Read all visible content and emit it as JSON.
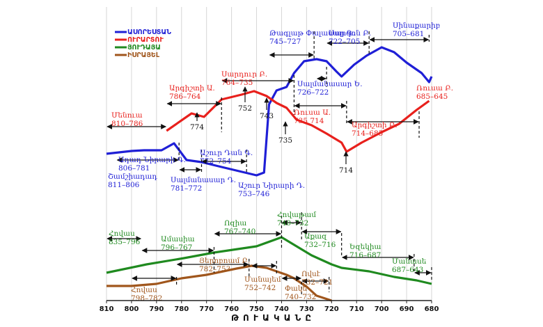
{
  "chart_data": {
    "type": "line",
    "xlabel": "Թ Ո Ւ Ա Կ Ա Ն Ը",
    "x_ticks": [
      810,
      800,
      790,
      780,
      770,
      760,
      750,
      740,
      730,
      720,
      710,
      700,
      690,
      680
    ],
    "xlim": [
      810,
      680
    ],
    "legend": [
      {
        "name": "ԱՍՈՐԵՍՏԱՆ",
        "color": "#1f1fd6"
      },
      {
        "name": "ՈՒՐԱՐՏՈՒ",
        "color": "#e8201c"
      },
      {
        "name": "ՅՈՒԴԱՅԱ",
        "color": "#1f8a1f"
      },
      {
        "name": "ԻՍՐԱՅԵԼ",
        "color": "#a0561c"
      }
    ],
    "series": [
      {
        "name": "ԱՍՈՐԵՍՏԱՆ",
        "color": "#1f1fd6",
        "points": [
          [
            810,
            221
          ],
          [
            800,
            217
          ],
          [
            795,
            216
          ],
          [
            788,
            216
          ],
          [
            783,
            206
          ],
          [
            778,
            230
          ],
          [
            772,
            233
          ],
          [
            764,
            240
          ],
          [
            750,
            252
          ],
          [
            747,
            248
          ],
          [
            745,
            150
          ],
          [
            742,
            130
          ],
          [
            738,
            125
          ],
          [
            735,
            105
          ],
          [
            731,
            88
          ],
          [
            726,
            85
          ],
          [
            722,
            88
          ],
          [
            718,
            103
          ],
          [
            716,
            110
          ],
          [
            711,
            93
          ],
          [
            706,
            80
          ],
          [
            700,
            68
          ],
          [
            695,
            75
          ],
          [
            690,
            90
          ],
          [
            684,
            105
          ],
          [
            681,
            118
          ],
          [
            680,
            110
          ]
        ]
      },
      {
        "name": "ՈՒՐԱՐՏՈՒ",
        "color": "#e8201c",
        "points": [
          [
            786,
            188
          ],
          [
            776,
            163
          ],
          [
            771,
            168
          ],
          [
            764,
            143
          ],
          [
            756,
            136
          ],
          [
            751,
            131
          ],
          [
            746,
            138
          ],
          [
            742,
            148
          ],
          [
            738,
            155
          ],
          [
            734,
            172
          ],
          [
            728,
            180
          ],
          [
            722,
            192
          ],
          [
            716,
            205
          ],
          [
            714,
            218
          ],
          [
            708,
            205
          ],
          [
            700,
            190
          ],
          [
            693,
            178
          ],
          [
            686,
            158
          ],
          [
            681,
            145
          ]
        ]
      },
      {
        "name": "ՅՈՒԴԱՅԱ",
        "color": "#1f8a1f",
        "points": [
          [
            810,
            392
          ],
          [
            794,
            380
          ],
          [
            779,
            371
          ],
          [
            767,
            363
          ],
          [
            750,
            354
          ],
          [
            740,
            341
          ],
          [
            734,
            354
          ],
          [
            728,
            367
          ],
          [
            720,
            380
          ],
          [
            716,
            385
          ],
          [
            705,
            390
          ],
          [
            695,
            398
          ],
          [
            686,
            403
          ],
          [
            680,
            408
          ]
        ]
      },
      {
        "name": "ԻՍՐԱՅԵԼ",
        "color": "#a0561c",
        "points": [
          [
            810,
            411
          ],
          [
            800,
            411
          ],
          [
            790,
            408
          ],
          [
            780,
            400
          ],
          [
            770,
            395
          ],
          [
            758,
            386
          ],
          [
            752,
            382
          ],
          [
            746,
            385
          ],
          [
            742,
            390
          ],
          [
            738,
            395
          ],
          [
            735,
            400
          ],
          [
            730,
            412
          ],
          [
            726,
            425
          ],
          [
            720,
            432
          ]
        ]
      }
    ],
    "annotations": [
      {
        "id": "men-asr",
        "label": "Մենուա",
        "years": "810–786",
        "color": "#e8201c",
        "x_from": 810,
        "x_to": 786
      },
      {
        "id": "argisti1",
        "label": "Արգիշտի Ա.",
        "years": "786–764",
        "color": "#e8201c",
        "x_from": 786,
        "x_to": 764
      },
      {
        "id": "sarduri2",
        "label": "Սարդուր Բ.",
        "years": "764–735",
        "color": "#e8201c",
        "x_from": 764,
        "x_to": 735
      },
      {
        "id": "rusa1",
        "label": "Ռուսա Ա.",
        "years": "735  714",
        "color": "#e8201c",
        "x_from": 735,
        "x_to": 714
      },
      {
        "id": "argisti2",
        "label": "Արգիշտի Բ.",
        "years": "714–685",
        "color": "#e8201c",
        "x_from": 714,
        "x_to": 685
      },
      {
        "id": "rusa2",
        "label": "Ռուսա Բ.",
        "years": "685–645",
        "color": "#e8201c"
      },
      {
        "id": "adad",
        "label": "Ադադ Նիրարի Գ.",
        "years": "806–781",
        "color": "#1f1fd6",
        "x_from": 806,
        "x_to": 781
      },
      {
        "id": "shamshi",
        "label": "Շամշիադադ",
        "years": "811–806",
        "color": "#1f1fd6"
      },
      {
        "id": "salman4",
        "label": "Սալմանասար Դ.",
        "years": "781–772",
        "color": "#1f1fd6",
        "x_from": 781,
        "x_to": 772
      },
      {
        "id": "ashur3",
        "label": "Աշուր Դան Գ.",
        "years": "772–754",
        "color": "#1f1fd6",
        "x_from": 772,
        "x_to": 754
      },
      {
        "id": "ashurnir",
        "label": "Աշուր Նիրարի Դ.",
        "years": "753–746",
        "color": "#1f1fd6"
      },
      {
        "id": "tiglat",
        "label": "Թագլաթ Փալասար Գ.",
        "years": "745–727",
        "color": "#1f1fd6",
        "x_from": 745,
        "x_to": 727
      },
      {
        "id": "salman5",
        "label": "Սալմանասար Ե.",
        "years": "726–722",
        "color": "#1f1fd6",
        "x_from": 726,
        "x_to": 722
      },
      {
        "id": "sargon",
        "label": "Սարգոն Բ.",
        "years": "722–705",
        "color": "#1f1fd6",
        "x_from": 722,
        "x_to": 705
      },
      {
        "id": "sinaxerib",
        "label": "Սինաքարիբ",
        "years": "705–681",
        "color": "#1f1fd6",
        "x_from": 705,
        "x_to": 681
      },
      {
        "id": "hovas-j",
        "label": "Հովաս",
        "years": "835–796",
        "color": "#1f8a1f",
        "x_from": 810,
        "x_to": 796
      },
      {
        "id": "amasia",
        "label": "Ամասիա",
        "years": "796–767",
        "color": "#1f8a1f",
        "x_from": 796,
        "x_to": 767
      },
      {
        "id": "ozia",
        "label": "Ոզիա",
        "years": "767–740",
        "color": "#1f8a1f",
        "x_from": 767,
        "x_to": 740
      },
      {
        "id": "hovatam",
        "label": "Հովաթամ",
        "years": "740–732",
        "color": "#1f8a1f",
        "x_from": 740,
        "x_to": 732
      },
      {
        "id": "ahaz",
        "label": "Աքազ",
        "years": "732–716",
        "color": "#1f8a1f",
        "x_from": 732,
        "x_to": 716
      },
      {
        "id": "ezekia",
        "label": "Եզեկիա",
        "years": "716–687",
        "color": "#1f8a1f",
        "x_from": 716,
        "x_to": 687
      },
      {
        "id": "manase",
        "label": "Մանասե",
        "years": "687–643",
        "color": "#1f8a1f",
        "x_from": 687,
        "x_to": 680
      },
      {
        "id": "hovas-i",
        "label": "Հովաս",
        "years": "798–782",
        "color": "#a0561c",
        "x_from": 800,
        "x_to": 782
      },
      {
        "id": "jeroboam",
        "label": "Յերոբոամ Բ.",
        "years": "782–753",
        "color": "#a0561c",
        "x_from": 782,
        "x_to": 753
      },
      {
        "id": "menahem",
        "label": "Մանայեմ",
        "years": "752–742",
        "color": "#a0561c",
        "x_from": 752,
        "x_to": 742
      },
      {
        "id": "pekah",
        "label": "Փակե",
        "years": "740–732",
        "color": "#a0561c",
        "x_from": 740,
        "x_to": 732
      },
      {
        "id": "hoshea",
        "label": "Ովսէ",
        "years": "732–721",
        "color": "#a0561c",
        "x_from": 732,
        "x_to": 721
      }
    ],
    "marker_years": [
      {
        "label": "774",
        "x": 774
      },
      {
        "label": "752",
        "x": 752
      },
      {
        "label": "743",
        "x": 743
      },
      {
        "label": "735",
        "x": 735
      },
      {
        "label": "714",
        "x": 714
      }
    ]
  }
}
